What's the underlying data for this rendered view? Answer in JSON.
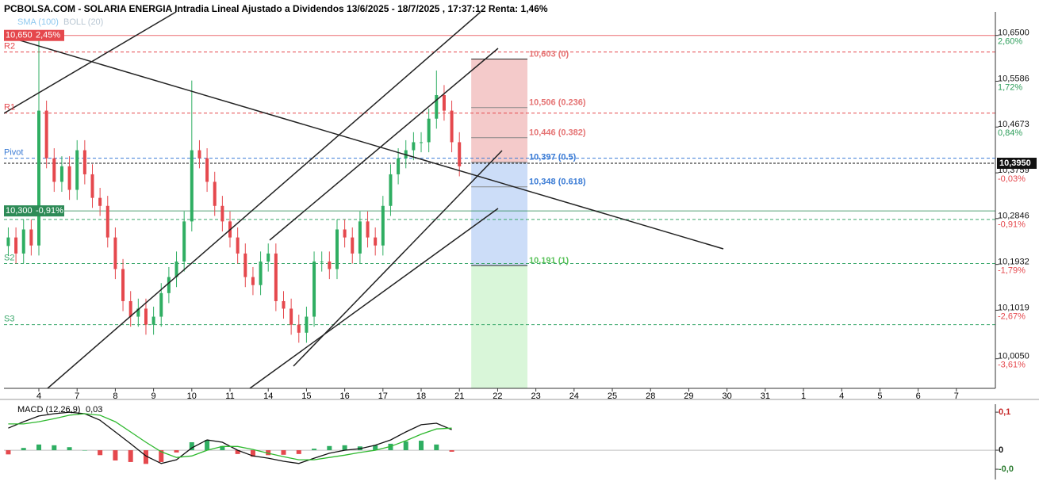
{
  "chart_data": [
    {
      "type": "candlestick",
      "title": "PCBOLSA.COM - SOLARIA ENERGIA Intradia Lineal Ajustado a Dividendos 13/6/2025 - 18/7/2025 , 17:37:12 Renta: 1,46%",
      "legend": [
        {
          "name": "SMA (100)",
          "color": "#8fc9ef"
        },
        {
          "name": "BOLL (20)",
          "color": "#b9c7d3"
        }
      ],
      "up_color": "#2fae62",
      "down_color": "#e5484d",
      "x": [
        -0.8,
        -0.6,
        -0.4,
        -0.2,
        0,
        0.2,
        0.4,
        0.6,
        0.8,
        1,
        1.2,
        1.4,
        1.6,
        1.8,
        2,
        2.2,
        2.4,
        2.6,
        2.8,
        3,
        3.2,
        3.4,
        3.6,
        3.8,
        4,
        4.2,
        4.4,
        4.6,
        4.8,
        5,
        5.2,
        5.4,
        5.6,
        5.8,
        6,
        6.2,
        6.4,
        6.6,
        6.8,
        7,
        7.2,
        7.4,
        7.6,
        7.8,
        8,
        8.2,
        8.4,
        8.6,
        8.8,
        9,
        9.2,
        9.4,
        9.6,
        9.8,
        10,
        10.2,
        10.4,
        10.6,
        10.8,
        11
      ],
      "open": [
        10.23,
        10.247,
        10.215,
        10.263,
        10.231,
        10.5,
        10.405,
        10.358,
        10.389,
        10.342,
        10.421,
        10.373,
        10.326,
        10.31,
        10.247,
        10.184,
        10.12,
        10.089,
        10.105,
        10.073,
        10.089,
        10.136,
        10.168,
        10.199,
        10.279,
        10.421,
        10.405,
        10.358,
        10.31,
        10.279,
        10.247,
        10.215,
        10.168,
        10.152,
        10.199,
        10.215,
        10.12,
        10.105,
        10.073,
        10.057,
        10.089,
        10.199,
        10.199,
        10.184,
        10.263,
        10.247,
        10.215,
        10.279,
        10.247,
        10.231,
        10.31,
        10.373,
        10.405,
        10.421,
        10.437,
        10.437,
        10.484,
        10.531,
        10.5,
        10.437
      ],
      "high": [
        10.267,
        10.267,
        10.283,
        10.283,
        10.65,
        10.52,
        10.425,
        10.409,
        10.409,
        10.441,
        10.441,
        10.393,
        10.346,
        10.33,
        10.267,
        10.204,
        10.14,
        10.125,
        10.125,
        10.109,
        10.156,
        10.188,
        10.219,
        10.299,
        10.56,
        10.441,
        10.425,
        10.378,
        10.33,
        10.299,
        10.267,
        10.235,
        10.188,
        10.219,
        10.235,
        10.235,
        10.14,
        10.125,
        10.093,
        10.109,
        10.219,
        10.219,
        10.219,
        10.283,
        10.283,
        10.267,
        10.299,
        10.299,
        10.267,
        10.33,
        10.393,
        10.425,
        10.441,
        10.457,
        10.457,
        10.504,
        10.58,
        10.551,
        10.52,
        10.457
      ],
      "low": [
        10.21,
        10.195,
        10.195,
        10.211,
        10.211,
        10.385,
        10.338,
        10.338,
        10.322,
        10.322,
        10.353,
        10.306,
        10.29,
        10.227,
        10.164,
        10.1,
        10.069,
        10.069,
        10.053,
        10.053,
        10.069,
        10.116,
        10.148,
        10.179,
        10.259,
        10.385,
        10.338,
        10.29,
        10.259,
        10.227,
        10.195,
        10.148,
        10.132,
        10.132,
        10.179,
        10.1,
        10.085,
        10.053,
        10.037,
        10.037,
        10.069,
        10.179,
        10.164,
        10.164,
        10.227,
        10.195,
        10.195,
        10.227,
        10.211,
        10.211,
        10.29,
        10.353,
        10.385,
        10.401,
        10.417,
        10.417,
        10.464,
        10.48,
        10.417,
        10.369
      ],
      "close": [
        10.247,
        10.215,
        10.263,
        10.231,
        10.5,
        10.405,
        10.358,
        10.389,
        10.342,
        10.421,
        10.373,
        10.326,
        10.31,
        10.247,
        10.184,
        10.12,
        10.089,
        10.105,
        10.073,
        10.089,
        10.136,
        10.168,
        10.199,
        10.279,
        10.421,
        10.405,
        10.358,
        10.31,
        10.279,
        10.247,
        10.215,
        10.168,
        10.152,
        10.199,
        10.215,
        10.12,
        10.105,
        10.073,
        10.057,
        10.089,
        10.199,
        10.199,
        10.184,
        10.263,
        10.247,
        10.215,
        10.279,
        10.247,
        10.231,
        10.31,
        10.373,
        10.405,
        10.421,
        10.437,
        10.437,
        10.484,
        10.531,
        10.5,
        10.437,
        10.389
      ],
      "xlim": [
        -0.913,
        25.02
      ],
      "xticks": [
        {
          "value": 0,
          "label": "4"
        },
        {
          "value": 1,
          "label": "7"
        },
        {
          "value": 2,
          "label": "8"
        },
        {
          "value": 3,
          "label": "9"
        },
        {
          "value": 4,
          "label": "10"
        },
        {
          "value": 5,
          "label": "11"
        },
        {
          "value": 6,
          "label": "14"
        },
        {
          "value": 7,
          "label": "15"
        },
        {
          "value": 8,
          "label": "16"
        },
        {
          "value": 9,
          "label": "17"
        },
        {
          "value": 10,
          "label": "18"
        },
        {
          "value": 11,
          "label": "21"
        },
        {
          "value": 12,
          "label": "22"
        },
        {
          "value": 13,
          "label": "23"
        },
        {
          "value": 14,
          "label": "24"
        },
        {
          "value": 15,
          "label": "25"
        },
        {
          "value": 16,
          "label": "28"
        },
        {
          "value": 17,
          "label": "29"
        },
        {
          "value": 18,
          "label": "30"
        },
        {
          "value": 19,
          "label": "31"
        },
        {
          "value": 20,
          "label": "1"
        },
        {
          "value": 21,
          "label": "4"
        },
        {
          "value": 22,
          "label": "5"
        },
        {
          "value": 23,
          "label": "6"
        },
        {
          "value": 24,
          "label": "7"
        }
      ],
      "ylim": [
        9.946,
        10.697
      ],
      "yticks": [
        {
          "value": 10.65,
          "label": "10,6500"
        },
        {
          "value": 10.5586,
          "label": "10,5586"
        },
        {
          "value": 10.4673,
          "label": "10,4673"
        },
        {
          "value": 10.3759,
          "label": "10,3759"
        },
        {
          "value": 10.2846,
          "label": "10,2846"
        },
        {
          "value": 10.1932,
          "label": "10,1932"
        },
        {
          "value": 10.1019,
          "label": "10,1019"
        },
        {
          "value": 10.005,
          "label": "10,0050"
        }
      ],
      "ytick_changes": [
        "2,60%",
        "1,72%",
        "0,84%",
        "-0,03%",
        "-0,91%",
        "-1,79%",
        "-2,67%",
        "-3,61%"
      ],
      "levels": [
        {
          "name": "R2",
          "value": 10.617,
          "color": "#e5484d"
        },
        {
          "name": "R1",
          "value": 10.495,
          "color": "#e5484d"
        },
        {
          "name": "Pivot",
          "value": 10.405,
          "color": "#3a7bd5"
        },
        {
          "name": null,
          "value": 10.283,
          "color": "#3aa86b"
        },
        {
          "name": "S2",
          "value": 10.195,
          "color": "#3aa86b"
        },
        {
          "name": "S3",
          "value": 10.073,
          "color": "#3aa86b"
        }
      ],
      "markers": [
        {
          "value": 10.65,
          "label": "10,650",
          "change": "2,45%",
          "color": "#e5484d"
        },
        {
          "value": 10.3,
          "label": "10,300",
          "change": "-0,91%",
          "color": "#2e8b57"
        }
      ],
      "last": {
        "value": 10.395,
        "label": "10,3950"
      },
      "fibonacci": {
        "x_range": [
          11.31,
          12.78
        ],
        "levels": [
          {
            "value": 10.603,
            "label": "10,603 (0)",
            "color": "#e57373"
          },
          {
            "value": 10.506,
            "label": "10,506 (0.236)",
            "color": "#e57373"
          },
          {
            "value": 10.446,
            "label": "10,446 (0.382)",
            "color": "#e57373"
          },
          {
            "value": 10.397,
            "label": "10,397 (0.5)",
            "color": "#3a7bd5"
          },
          {
            "value": 10.348,
            "label": "10,348 (0.618)",
            "color": "#3a7bd5"
          },
          {
            "value": 10.191,
            "label": "10,191 (1)",
            "color": "#5cc35c"
          }
        ]
      }
    },
    {
      "type": "macd",
      "title": "MACD (12,26,9)",
      "subtitle": "0,03",
      "x": [
        -0.8,
        -0.4,
        0,
        0.4,
        0.8,
        1.2,
        1.6,
        2,
        2.4,
        2.8,
        3.2,
        3.6,
        4,
        4.4,
        4.8,
        5.2,
        5.6,
        6,
        6.4,
        6.8,
        7.2,
        7.6,
        8,
        8.4,
        8.8,
        9.2,
        9.6,
        10,
        10.4,
        10.8
      ],
      "series": [
        {
          "color": "#111111",
          "values": [
            0.058,
            0.075,
            0.09,
            0.096,
            0.1,
            0.096,
            0.079,
            0.048,
            0.017,
            -0.015,
            -0.035,
            -0.025,
            0.006,
            0.027,
            0.021,
            0,
            -0.015,
            -0.021,
            -0.029,
            -0.035,
            -0.021,
            -0.008,
            0,
            0.004,
            0.013,
            0.027,
            0.048,
            0.067,
            0.071,
            0.054
          ]
        },
        {
          "color": "#2eb82e",
          "values": [
            0.069,
            0.069,
            0.075,
            0.083,
            0.092,
            0.096,
            0.092,
            0.075,
            0.048,
            0.021,
            -0.004,
            -0.019,
            -0.015,
            0,
            0.01,
            0.01,
            0.002,
            -0.008,
            -0.017,
            -0.025,
            -0.025,
            -0.019,
            -0.013,
            -0.006,
            0,
            0.01,
            0.025,
            0.042,
            0.056,
            0.058
          ]
        }
      ],
      "histogram": {
        "up_color": "#2fae62",
        "down_color": "#e5484d",
        "values": [
          -0.011,
          0.006,
          0.015,
          0.013,
          0.008,
          0,
          -0.013,
          -0.027,
          -0.031,
          -0.036,
          -0.031,
          -0.006,
          0.021,
          0.027,
          0.011,
          -0.01,
          -0.017,
          -0.013,
          -0.012,
          -0.01,
          0.004,
          0.011,
          0.013,
          0.01,
          0.013,
          0.017,
          0.023,
          0.025,
          0.015,
          -0.004
        ]
      },
      "xlim": [
        -0.913,
        25.02
      ],
      "ylim": [
        -0.077,
        0.121
      ],
      "yticks": [
        {
          "value": 0.1,
          "label": "0,1"
        },
        0,
        {
          "value": -0.05,
          "label": "-0,0"
        }
      ]
    }
  ]
}
